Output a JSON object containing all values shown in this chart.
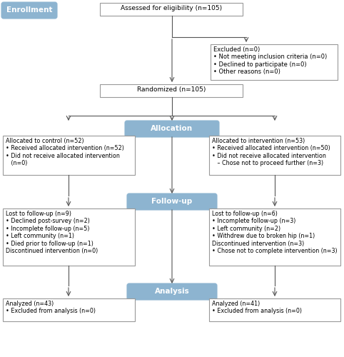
{
  "bg_color": "#ffffff",
  "box_border_color": "#999999",
  "blue_fill": "#8db4d0",
  "blue_text": "#ffffff",
  "white_fill": "#ffffff",
  "arrow_color": "#555555",
  "enrollment_label": "Enrollment",
  "assessed_text": "Assessed for eligibility (n=105)",
  "excluded_text": "Excluded (n=0)\n• Not meeting inclusion criteria (n=0)\n• Declined to participate (n=0)\n• Other reasons (n=0)",
  "randomized_text": "Randomized (n=105)",
  "allocation_label": "Allocation",
  "control_text": "Allocated to control (n=52)\n• Received allocated intervention (n=52)\n• Did not receive allocated intervention\n   (n=0)",
  "intervention_text": "Allocated to intervention (n=53)\n• Received allocated intervention (n=50)\n• Did not receive allocated intervention\n   – Chose not to proceed further (n=3)",
  "followup_label": "Follow-up",
  "lost_control_text": "Lost to follow-up (n=9)\n• Declined post-survey (n=2)\n• Incomplete follow-up (n=5)\n• Left community (n=1)\n• Died prior to follow-up (n=1)\nDiscontinued intervention (n=0)",
  "lost_intervention_text": "Lost to follow-up (n=6)\n• Incomplete follow-up (n=3)\n• Left community (n=2)\n• Withdrew due to broken hip (n=1)\nDiscontinued intervention (n=3)\n• Chose not to complete intervention (n=3)",
  "analysis_label": "Analysis",
  "analyzed_control_text": "Analyzed (n=43)\n• Excluded from analysis (n=0)",
  "analyzed_intervention_text": "Analyzed (n=41)\n• Excluded from analysis (n=0)"
}
